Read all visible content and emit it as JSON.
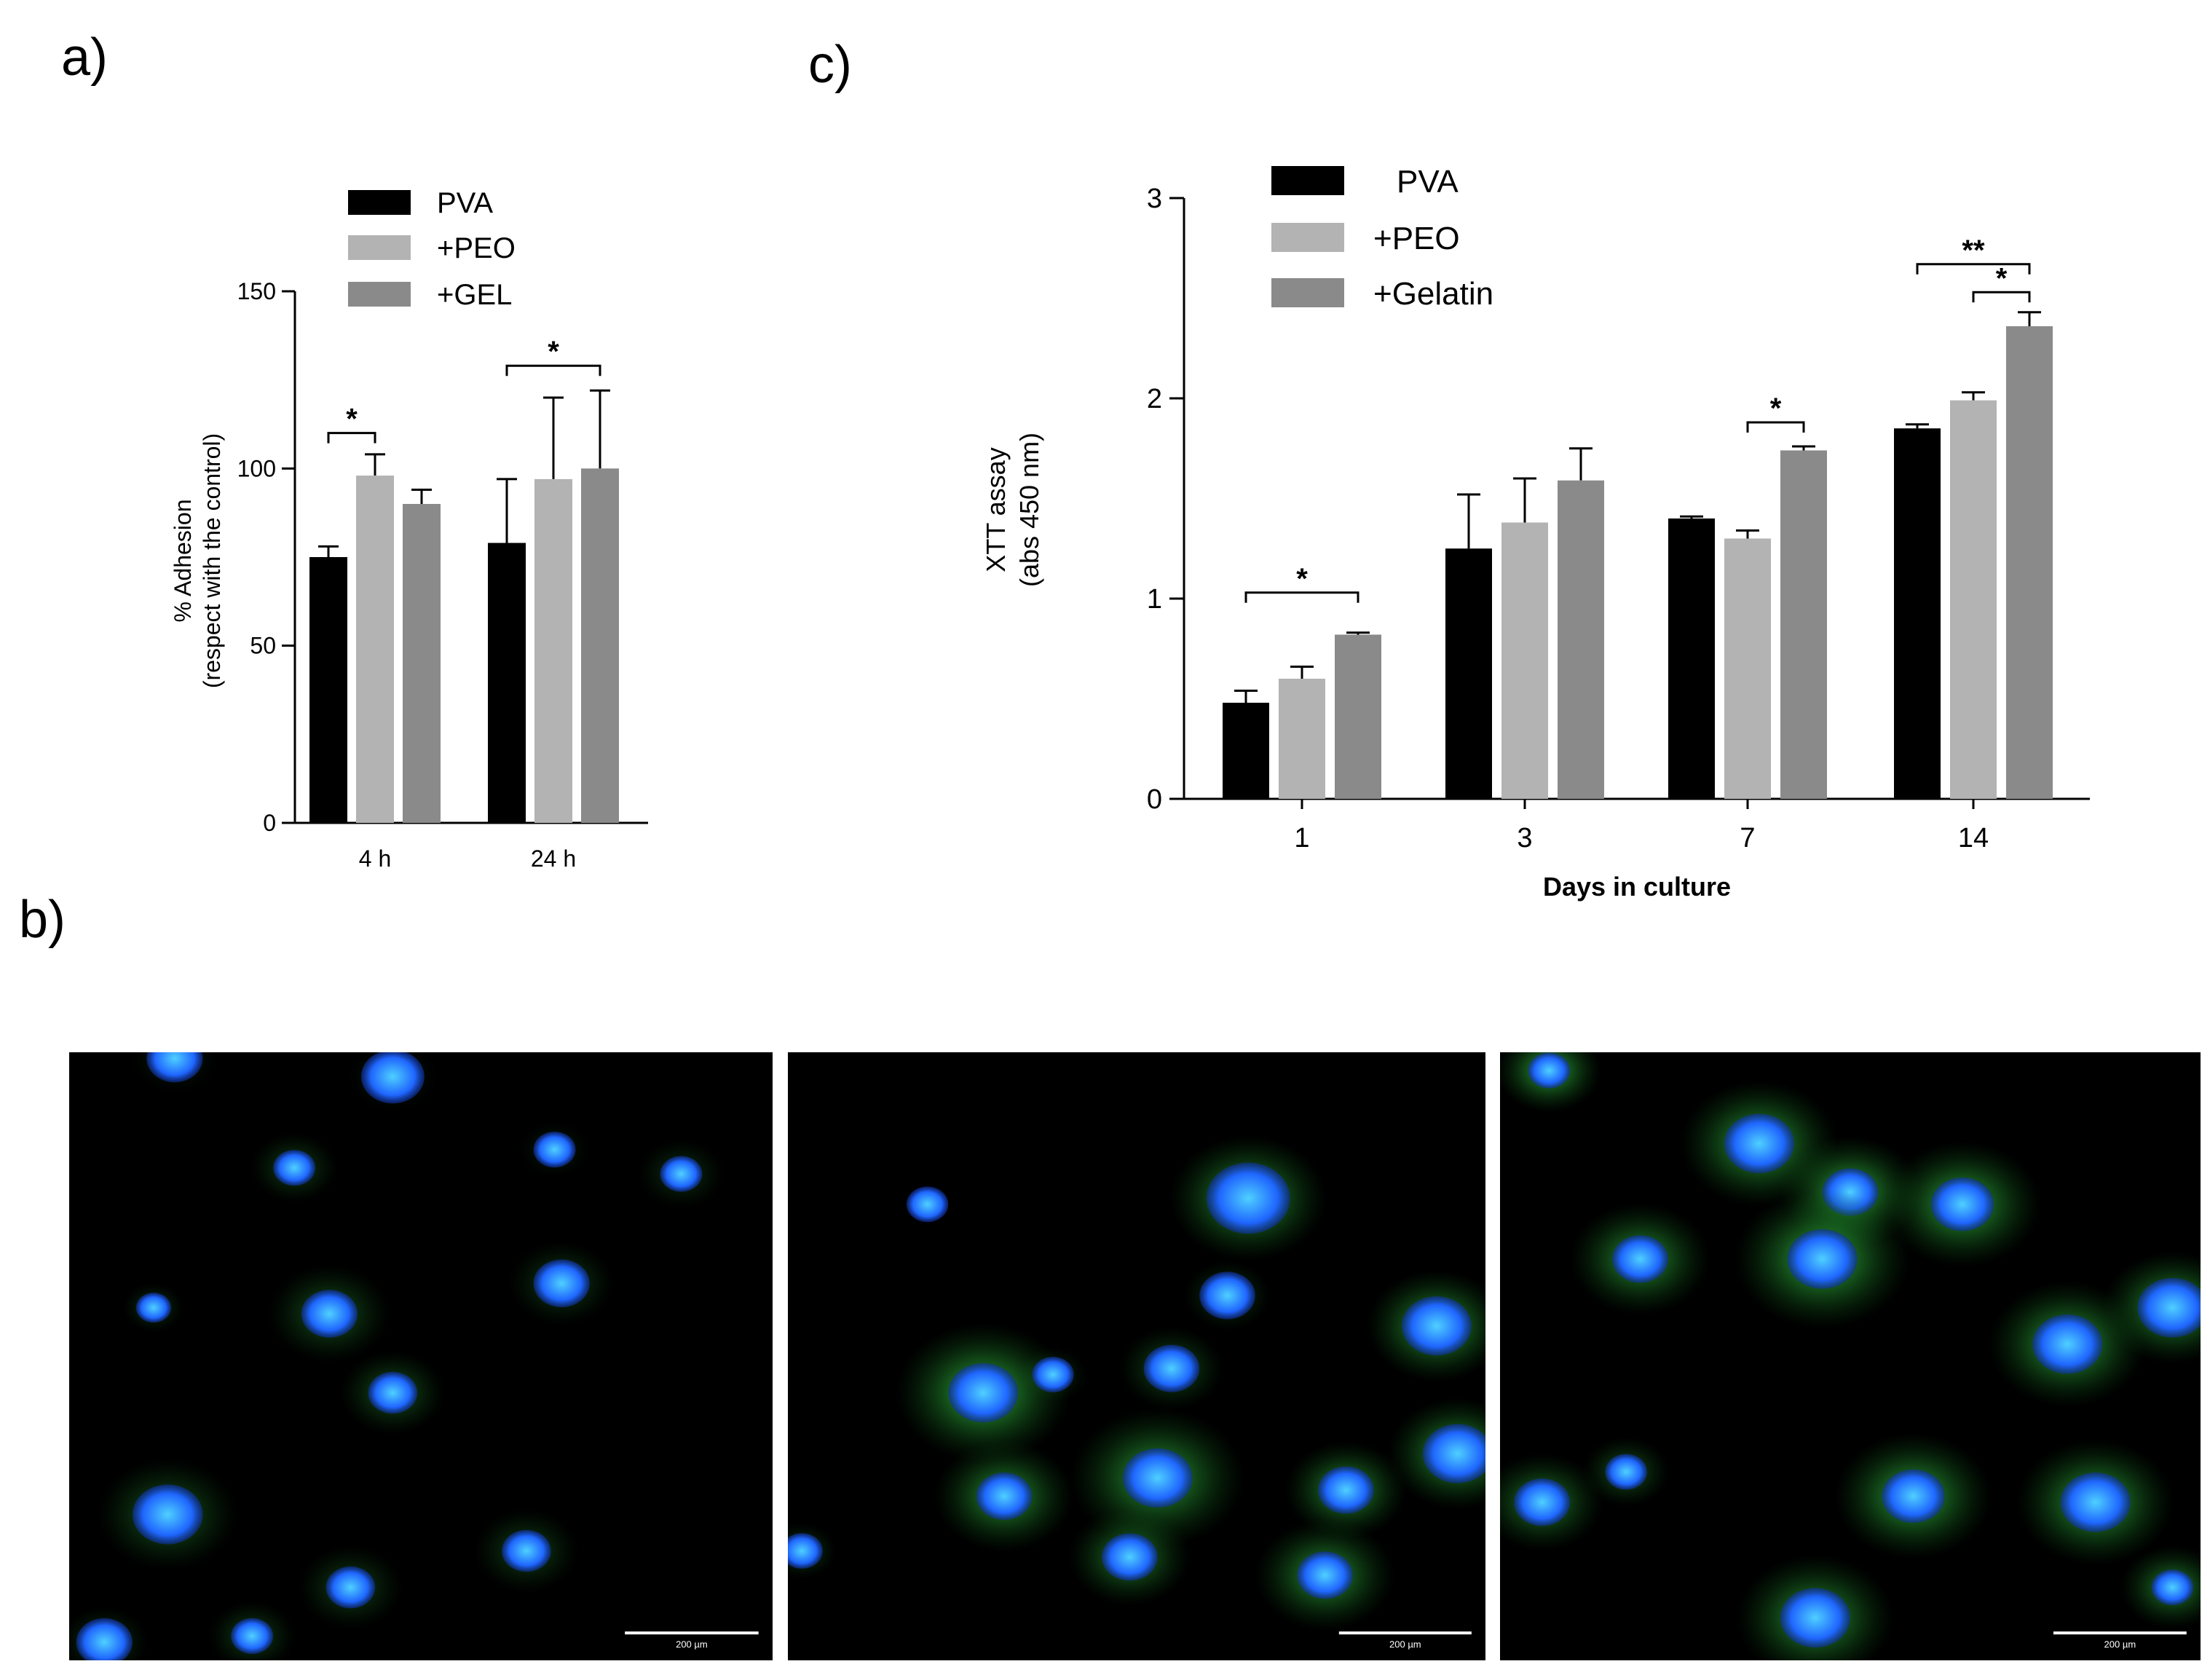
{
  "panels": {
    "a": {
      "letter": "a)"
    },
    "b": {
      "letter": "b)"
    },
    "c": {
      "letter": "c)"
    }
  },
  "colors": {
    "PVA": "#000000",
    "PEO": "#b3b3b3",
    "GEL": "#8a8a8a",
    "axis": "#000000"
  },
  "chart_data": [
    {
      "id": "a",
      "type": "bar",
      "ylabel": [
        "% Adhesion",
        "(respect with the control)"
      ],
      "xlabel": "",
      "ylim": [
        0,
        150
      ],
      "yticks": [
        0,
        50,
        100,
        150
      ],
      "categories": [
        "4 h",
        "24 h"
      ],
      "legend_position": "top",
      "series": [
        {
          "name": "PVA",
          "values": [
            75,
            79
          ],
          "errors": [
            3,
            18
          ]
        },
        {
          "name": "+PEO",
          "values": [
            98,
            97
          ],
          "errors": [
            6,
            23
          ]
        },
        {
          "name": "+GEL",
          "values": [
            90,
            100
          ],
          "errors": [
            4,
            22
          ]
        }
      ],
      "significance": [
        {
          "category": 0,
          "from": 0,
          "to": 1,
          "label": "*",
          "y": 110
        },
        {
          "category": 1,
          "from": 0,
          "to": 2,
          "label": "*",
          "y": 129
        }
      ]
    },
    {
      "id": "c",
      "type": "bar",
      "ylabel": [
        "XTT assay",
        "(abs 450 nm)"
      ],
      "xlabel": "Days in culture",
      "ylim": [
        0,
        3
      ],
      "yticks": [
        0,
        1,
        2,
        3
      ],
      "categories": [
        "1",
        "3",
        "7",
        "14"
      ],
      "legend_position": "top-left",
      "series": [
        {
          "name": "PVA",
          "values": [
            0.48,
            1.25,
            1.4,
            1.85
          ],
          "errors": [
            0.06,
            0.27,
            0.01,
            0.02
          ]
        },
        {
          "name": "+PEO",
          "values": [
            0.6,
            1.38,
            1.3,
            1.99
          ],
          "errors": [
            0.06,
            0.22,
            0.04,
            0.04
          ]
        },
        {
          "name": "+Gelatin",
          "values": [
            0.82,
            1.59,
            1.74,
            2.36
          ],
          "errors": [
            0.01,
            0.16,
            0.02,
            0.07
          ]
        }
      ],
      "significance": [
        {
          "category": 0,
          "from": 0,
          "to": 2,
          "label": "*",
          "y": 1.03
        },
        {
          "category": 2,
          "from": 1,
          "to": 2,
          "label": "*",
          "y": 1.88
        },
        {
          "category": 3,
          "from": 1,
          "to": 2,
          "label": "*",
          "y": 2.53
        },
        {
          "category": 3,
          "from": 0,
          "to": 2,
          "label": "**",
          "y": 2.67
        }
      ]
    }
  ],
  "micrographs": [
    {
      "id": "b1",
      "scale_bar": "200 µm"
    },
    {
      "id": "b2",
      "scale_bar": "200 µm"
    },
    {
      "id": "b3",
      "scale_bar": "200 µm"
    }
  ]
}
